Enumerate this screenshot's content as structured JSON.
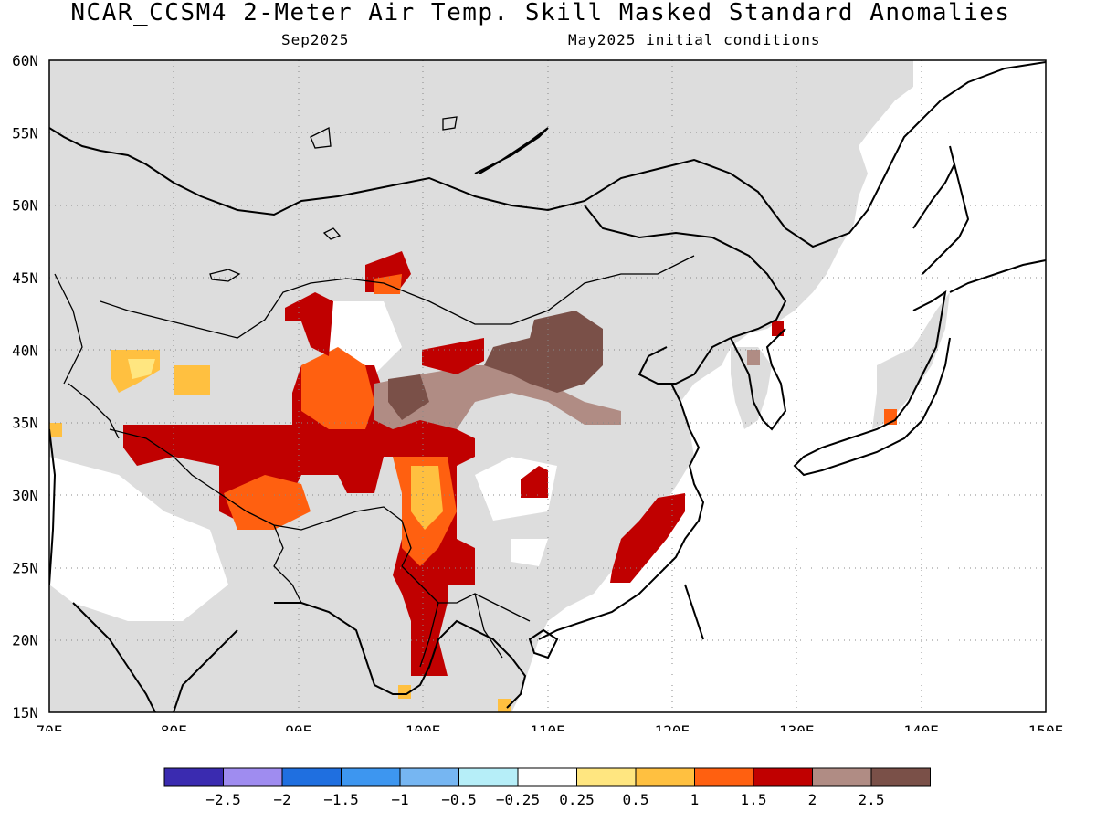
{
  "title": "NCAR_CCSM4 2-Meter Air Temp. Skill Masked Standard Anomalies",
  "target_month": "Sep2025",
  "initial_conditions": "May2025 initial conditions",
  "map": {
    "lon_range": [
      70,
      150
    ],
    "lat_range": [
      15,
      60
    ],
    "lon_ticks": [
      "70E",
      "80E",
      "90E",
      "100E",
      "110E",
      "120E",
      "130E",
      "140E",
      "150E"
    ],
    "lat_ticks": [
      "15N",
      "20N",
      "25N",
      "30N",
      "35N",
      "40N",
      "45N",
      "50N",
      "55N",
      "60N"
    ],
    "grid": "dotted",
    "masked_color": "#dddddd"
  },
  "legend": {
    "colors": [
      "#3a2bb0",
      "#9f8cf0",
      "#1f6fe0",
      "#3d96f0",
      "#76b6f2",
      "#b6eef8",
      "#ffffff",
      "#ffe680",
      "#ffc040",
      "#ff6010",
      "#c00000",
      "#b08c84",
      "#7a5048"
    ],
    "labels": [
      "−2.5",
      "−2",
      "−1.5",
      "−1",
      "−0.5",
      "−0.25",
      "0.25",
      "0.5",
      "1",
      "1.5",
      "2",
      "2.5"
    ]
  }
}
